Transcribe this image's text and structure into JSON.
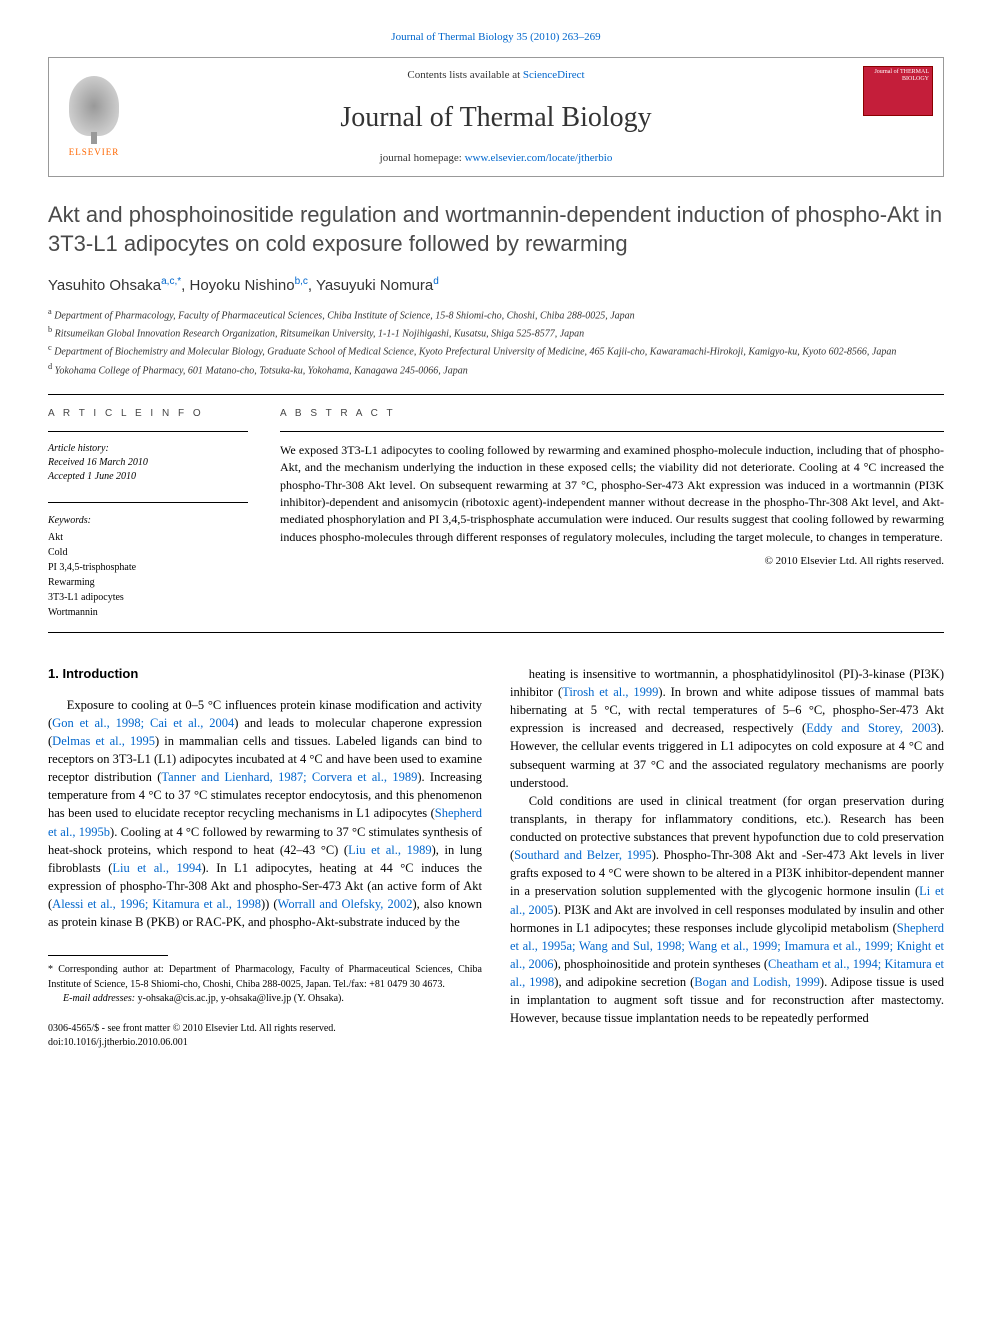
{
  "top_link": "Journal of Thermal Biology 35 (2010) 263–269",
  "header": {
    "contents_prefix": "Contents lists available at ",
    "contents_link": "ScienceDirect",
    "journal_name": "Journal of Thermal Biology",
    "homepage_prefix": "journal homepage: ",
    "homepage_url": "www.elsevier.com/locate/jtherbio",
    "elsevier_label": "ELSEVIER",
    "cover_text": "Journal of THERMAL BIOLOGY"
  },
  "title": "Akt and phosphoinositide regulation and wortmannin-dependent induction of phospho-Akt in 3T3-L1 adipocytes on cold exposure followed by rewarming",
  "authors_html": "Yasuhito Ohsaka|a,c,*|, Hoyoku Nishino|b,c|, Yasuyuki Nomura|d|",
  "affiliations": [
    "a Department of Pharmacology, Faculty of Pharmaceutical Sciences, Chiba Institute of Science, 15-8 Shiomi-cho, Choshi, Chiba 288-0025, Japan",
    "b Ritsumeikan Global Innovation Research Organization, Ritsumeikan University, 1-1-1 Nojihigashi, Kusatsu, Shiga 525-8577, Japan",
    "c Department of Biochemistry and Molecular Biology, Graduate School of Medical Science, Kyoto Prefectural University of Medicine, 465 Kajii-cho, Kawaramachi-Hirokoji, Kamigyo-ku, Kyoto 602-8566, Japan",
    "d Yokohama College of Pharmacy, 601 Matano-cho, Totsuka-ku, Yokohama, Kanagawa 245-0066, Japan"
  ],
  "info_headings": {
    "article_info": "A R T I C L E  I N F O",
    "abstract": "A B S T R A C T"
  },
  "history": {
    "hdr": "Article history:",
    "received": "Received 16 March 2010",
    "accepted": "Accepted 1 June 2010"
  },
  "keywords": {
    "hdr": "Keywords:",
    "items": [
      "Akt",
      "Cold",
      "PI 3,4,5-trisphosphate",
      "Rewarming",
      "3T3-L1 adipocytes",
      "Wortmannin"
    ]
  },
  "abstract": "We exposed 3T3-L1 adipocytes to cooling followed by rewarming and examined phospho-molecule induction, including that of phospho-Akt, and the mechanism underlying the induction in these exposed cells; the viability did not deteriorate. Cooling at 4 °C increased the phospho-Thr-308 Akt level. On subsequent rewarming at 37 °C, phospho-Ser-473 Akt expression was induced in a wortmannin (PI3K inhibitor)-dependent and anisomycin (ribotoxic agent)-independent manner without decrease in the phospho-Thr-308 Akt level, and Akt-mediated phosphorylation and PI 3,4,5-trisphosphate accumulation were induced. Our results suggest that cooling followed by rewarming induces phospho-molecules through different responses of regulatory molecules, including the target molecule, to changes in temperature.",
  "copyright": "© 2010 Elsevier Ltd. All rights reserved.",
  "intro_heading": "1.  Introduction",
  "col_left_paragraphs": [
    "Exposure to cooling at 0–5 °C influences protein kinase modification and activity (|Gon et al., 1998; Cai et al., 2004|) and leads to molecular chaperone expression (|Delmas et al., 1995|) in mammalian cells and tissues. Labeled ligands can bind to receptors on 3T3-L1 (L1) adipocytes incubated at 4 °C and have been used to examine receptor distribution (|Tanner and Lienhard, 1987; Corvera et al., 1989|). Increasing temperature from 4 °C to 37 °C stimulates receptor endocytosis, and this phenomenon has been used to elucidate receptor recycling mechanisms in L1 adipocytes (|Shepherd et al., 1995b|). Cooling at 4 °C followed by rewarming to 37 °C stimulates synthesis of heat-shock proteins, which respond to heat (42–43 °C) (|Liu et al., 1989|), in lung fibroblasts (|Liu et al., 1994|). In L1 adipocytes, heating at 44 °C induces the expression of phospho-Thr-308 Akt and phospho-Ser-473 Akt (an active form of Akt (|Alessi et al., 1996; Kitamura et al., 1998|)) (|Worrall and Olefsky, 2002|), also known as protein kinase B (PKB) or RAC-PK, and phospho-Akt-substrate induced by the"
  ],
  "col_right_paragraphs": [
    "heating is insensitive to wortmannin, a phosphatidylinositol (PI)-3-kinase (PI3K) inhibitor (|Tirosh et al., 1999|). In brown and white adipose tissues of mammal bats hibernating at 5 °C, with rectal temperatures of 5–6 °C, phospho-Ser-473 Akt expression is increased and decreased, respectively (|Eddy and Storey, 2003|). However, the cellular events triggered in L1 adipocytes on cold exposure at 4 °C and subsequent warming at 37 °C and the associated regulatory mechanisms are poorly understood.",
    "Cold conditions are used in clinical treatment (for organ preservation during transplants, in therapy for inflammatory conditions, etc.). Research has been conducted on protective substances that prevent hypofunction due to cold preservation (|Southard and Belzer, 1995|). Phospho-Thr-308 Akt and -Ser-473 Akt levels in liver grafts exposed to 4 °C were shown to be altered in a PI3K inhibitor-dependent manner in a preservation solution supplemented with the glycogenic hormone insulin (|Li et al., 2005|). PI3K and Akt are involved in cell responses modulated by insulin and other hormones in L1 adipocytes; these responses include glycolipid metabolism (|Shepherd et al., 1995a; Wang and Sul, 1998; Wang et al., 1999; Imamura et al., 1999; Knight et al., 2006|), phosphoinositide and protein syntheses (|Cheatham et al., 1994; Kitamura et al., 1998|), and adipokine secretion (|Bogan and Lodish, 1999|). Adipose tissue is used in implantation to augment soft tissue and for reconstruction after mastectomy. However, because tissue implantation needs to be repeatedly performed"
  ],
  "footnote": {
    "corr": "* Corresponding author at: Department of Pharmacology, Faculty of Pharmaceutical Sciences, Chiba Institute of Science, 15-8 Shiomi-cho, Choshi, Chiba 288-0025, Japan. Tel./fax: +81 0479 30 4673.",
    "email_label": "E-mail addresses:",
    "emails": "y-ohsaka@cis.ac.jp, y-ohsaka@live.jp (Y. Ohsaka)."
  },
  "bottom": {
    "line1": "0306-4565/$ - see front matter © 2010 Elsevier Ltd. All rights reserved.",
    "line2": "doi:10.1016/j.jtherbio.2010.06.001"
  },
  "colors": {
    "link": "#0066cc",
    "elsevier_orange": "#ff6600",
    "cover_red": "#c41e3a",
    "title_gray": "#4a4a4a"
  }
}
